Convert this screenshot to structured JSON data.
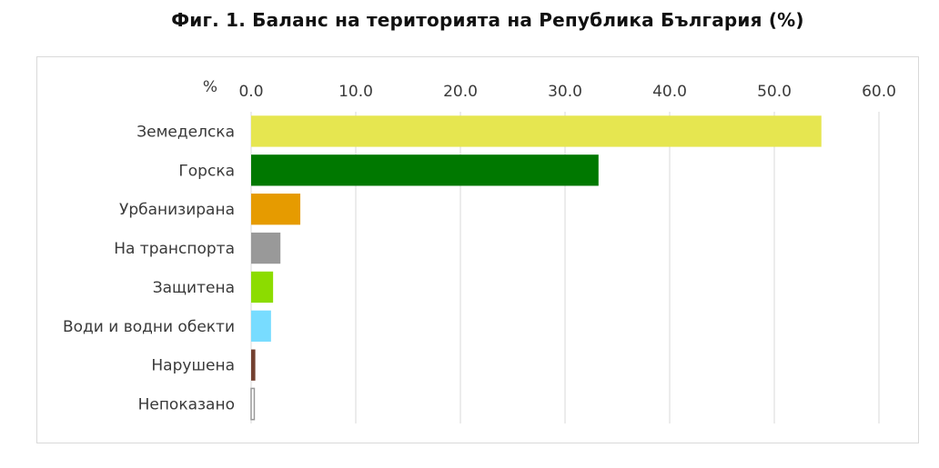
{
  "chart_data": {
    "type": "bar",
    "orientation": "horizontal",
    "title": "Фиг. 1. Баланс на територията на Република България (%)",
    "unit_label": "%",
    "xlim": [
      0,
      60
    ],
    "x_ticks": [
      0,
      10,
      20,
      30,
      40,
      50,
      60
    ],
    "x_tick_labels": [
      "0.0",
      "10.0",
      "20.0",
      "30.0",
      "40.0",
      "50.0",
      "60.0"
    ],
    "axis_position": "top",
    "grid": true,
    "categories": [
      "Земеделска",
      "Горска",
      "Урбанизирана",
      "На транспорта",
      "Защитена",
      "Води и водни обекти",
      "Нарушена",
      "Непоказано"
    ],
    "values": [
      54.5,
      33.2,
      4.7,
      2.8,
      2.1,
      1.9,
      0.4,
      0.3
    ],
    "colors": [
      "#e6e650",
      "#007800",
      "#e69b00",
      "#999999",
      "#8cdc00",
      "#78dcff",
      "#734030",
      "#ffffff"
    ],
    "outlines": [
      null,
      null,
      null,
      null,
      null,
      null,
      null,
      "#999999"
    ]
  }
}
